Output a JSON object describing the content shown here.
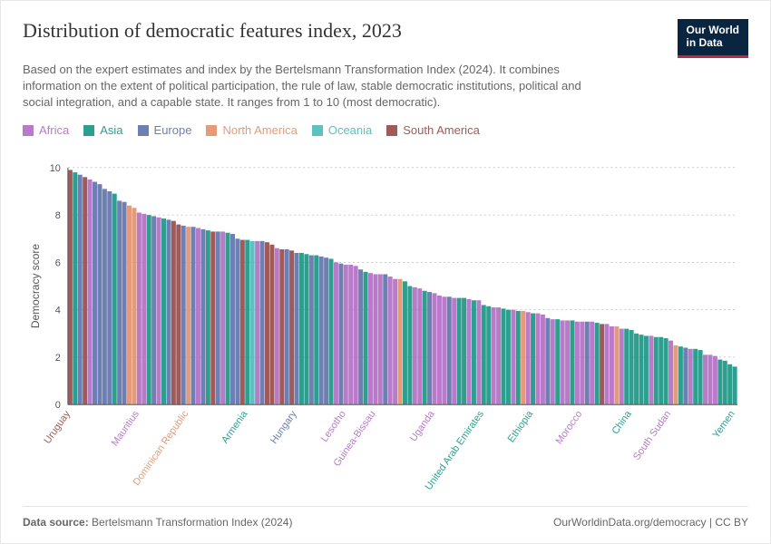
{
  "header": {
    "title": "Distribution of democratic features index, 2023",
    "subtitle": "Based on the expert estimates and index by the Bertelsmann Transformation Index (2024). It combines information on the extent of political participation, the rule of law, stable democratic institutions, political and social integration, and a capable state. It ranges from 1 to 10 (most democratic).",
    "logo_line1": "Our World",
    "logo_line2": "in Data"
  },
  "legend": {
    "items": [
      {
        "label": "Africa",
        "color": "#b97bc9"
      },
      {
        "label": "Asia",
        "color": "#2e9e8f"
      },
      {
        "label": "Europe",
        "color": "#6d7fb3"
      },
      {
        "label": "North America",
        "color": "#e59b7a"
      },
      {
        "label": "Oceania",
        "color": "#5ec1c1"
      },
      {
        "label": "South America",
        "color": "#a15a5a"
      }
    ]
  },
  "chart": {
    "type": "bar",
    "y_axis_title": "Democracy score",
    "ylim": [
      0,
      10
    ],
    "yticks": [
      0,
      2,
      4,
      6,
      8,
      10
    ],
    "grid_color": "#bbbbbb",
    "axis_color": "#555555",
    "background": "#ffffff",
    "region_colors": {
      "Africa": "#b97bc9",
      "Asia": "#2e9e8f",
      "Europe": "#6d7fb3",
      "North America": "#e59b7a",
      "Oceania": "#5ec1c1",
      "South America": "#a15a5a"
    },
    "label_fontsize": 11,
    "xlabels_shown": {
      "0": "Uruguay",
      "14": "Mauritius",
      "24": "Dominican Republic",
      "36": "Armenia",
      "46": "Hungary",
      "56": "Lesotho",
      "62": "Guinea-Bissau",
      "74": "Uganda",
      "84": "United Arab Emirates",
      "94": "Ethiopia",
      "104": "Morocco",
      "114": "China",
      "122": "South Sudan",
      "135": "Yemen"
    },
    "bars": [
      {
        "v": 9.9,
        "r": "South America"
      },
      {
        "v": 9.8,
        "r": "Asia"
      },
      {
        "v": 9.7,
        "r": "Europe"
      },
      {
        "v": 9.6,
        "r": "South America"
      },
      {
        "v": 9.5,
        "r": "Africa"
      },
      {
        "v": 9.4,
        "r": "Europe"
      },
      {
        "v": 9.3,
        "r": "Europe"
      },
      {
        "v": 9.1,
        "r": "Europe"
      },
      {
        "v": 9.0,
        "r": "Europe"
      },
      {
        "v": 8.9,
        "r": "Asia"
      },
      {
        "v": 8.6,
        "r": "Europe"
      },
      {
        "v": 8.55,
        "r": "Europe"
      },
      {
        "v": 8.4,
        "r": "North America"
      },
      {
        "v": 8.3,
        "r": "North America"
      },
      {
        "v": 8.1,
        "r": "Africa"
      },
      {
        "v": 8.05,
        "r": "Africa"
      },
      {
        "v": 8.0,
        "r": "Asia"
      },
      {
        "v": 7.95,
        "r": "Europe"
      },
      {
        "v": 7.9,
        "r": "Africa"
      },
      {
        "v": 7.85,
        "r": "Asia"
      },
      {
        "v": 7.8,
        "r": "Europe"
      },
      {
        "v": 7.75,
        "r": "South America"
      },
      {
        "v": 7.6,
        "r": "South America"
      },
      {
        "v": 7.55,
        "r": "Europe"
      },
      {
        "v": 7.5,
        "r": "North America"
      },
      {
        "v": 7.5,
        "r": "Europe"
      },
      {
        "v": 7.45,
        "r": "Africa"
      },
      {
        "v": 7.4,
        "r": "Europe"
      },
      {
        "v": 7.35,
        "r": "Asia"
      },
      {
        "v": 7.3,
        "r": "South America"
      },
      {
        "v": 7.3,
        "r": "Europe"
      },
      {
        "v": 7.3,
        "r": "Africa"
      },
      {
        "v": 7.25,
        "r": "Asia"
      },
      {
        "v": 7.2,
        "r": "Europe"
      },
      {
        "v": 7.0,
        "r": "Europe"
      },
      {
        "v": 6.95,
        "r": "South America"
      },
      {
        "v": 6.95,
        "r": "Asia"
      },
      {
        "v": 6.9,
        "r": "Oceania"
      },
      {
        "v": 6.9,
        "r": "Africa"
      },
      {
        "v": 6.9,
        "r": "Europe"
      },
      {
        "v": 6.85,
        "r": "South America"
      },
      {
        "v": 6.75,
        "r": "South America"
      },
      {
        "v": 6.6,
        "r": "Africa"
      },
      {
        "v": 6.55,
        "r": "South America"
      },
      {
        "v": 6.55,
        "r": "Europe"
      },
      {
        "v": 6.5,
        "r": "South America"
      },
      {
        "v": 6.4,
        "r": "Europe"
      },
      {
        "v": 6.4,
        "r": "Asia"
      },
      {
        "v": 6.35,
        "r": "Asia"
      },
      {
        "v": 6.3,
        "r": "Europe"
      },
      {
        "v": 6.3,
        "r": "Asia"
      },
      {
        "v": 6.25,
        "r": "Europe"
      },
      {
        "v": 6.2,
        "r": "Europe"
      },
      {
        "v": 6.15,
        "r": "Asia"
      },
      {
        "v": 6.0,
        "r": "Africa"
      },
      {
        "v": 5.95,
        "r": "Europe"
      },
      {
        "v": 5.9,
        "r": "Africa"
      },
      {
        "v": 5.9,
        "r": "Africa"
      },
      {
        "v": 5.85,
        "r": "Africa"
      },
      {
        "v": 5.7,
        "r": "Europe"
      },
      {
        "v": 5.6,
        "r": "Asia"
      },
      {
        "v": 5.55,
        "r": "Africa"
      },
      {
        "v": 5.5,
        "r": "Africa"
      },
      {
        "v": 5.5,
        "r": "Africa"
      },
      {
        "v": 5.5,
        "r": "Europe"
      },
      {
        "v": 5.4,
        "r": "Africa"
      },
      {
        "v": 5.3,
        "r": "Africa"
      },
      {
        "v": 5.3,
        "r": "North America"
      },
      {
        "v": 5.2,
        "r": "Asia"
      },
      {
        "v": 5.0,
        "r": "Asia"
      },
      {
        "v": 4.95,
        "r": "Africa"
      },
      {
        "v": 4.9,
        "r": "Africa"
      },
      {
        "v": 4.8,
        "r": "Asia"
      },
      {
        "v": 4.75,
        "r": "Europe"
      },
      {
        "v": 4.7,
        "r": "Africa"
      },
      {
        "v": 4.6,
        "r": "Africa"
      },
      {
        "v": 4.55,
        "r": "Africa"
      },
      {
        "v": 4.55,
        "r": "Europe"
      },
      {
        "v": 4.5,
        "r": "Africa"
      },
      {
        "v": 4.5,
        "r": "Asia"
      },
      {
        "v": 4.5,
        "r": "Asia"
      },
      {
        "v": 4.45,
        "r": "Africa"
      },
      {
        "v": 4.4,
        "r": "Asia"
      },
      {
        "v": 4.4,
        "r": "Africa"
      },
      {
        "v": 4.2,
        "r": "Asia"
      },
      {
        "v": 4.15,
        "r": "Asia"
      },
      {
        "v": 4.1,
        "r": "Africa"
      },
      {
        "v": 4.1,
        "r": "Africa"
      },
      {
        "v": 4.05,
        "r": "Asia"
      },
      {
        "v": 4.0,
        "r": "Asia"
      },
      {
        "v": 4.0,
        "r": "Africa"
      },
      {
        "v": 3.95,
        "r": "Asia"
      },
      {
        "v": 3.95,
        "r": "North America"
      },
      {
        "v": 3.9,
        "r": "Africa"
      },
      {
        "v": 3.85,
        "r": "Asia"
      },
      {
        "v": 3.85,
        "r": "Africa"
      },
      {
        "v": 3.8,
        "r": "Africa"
      },
      {
        "v": 3.65,
        "r": "Europe"
      },
      {
        "v": 3.6,
        "r": "Africa"
      },
      {
        "v": 3.6,
        "r": "Asia"
      },
      {
        "v": 3.55,
        "r": "Africa"
      },
      {
        "v": 3.55,
        "r": "Africa"
      },
      {
        "v": 3.55,
        "r": "Asia"
      },
      {
        "v": 3.5,
        "r": "Africa"
      },
      {
        "v": 3.5,
        "r": "Africa"
      },
      {
        "v": 3.5,
        "r": "Europe"
      },
      {
        "v": 3.5,
        "r": "Africa"
      },
      {
        "v": 3.45,
        "r": "Asia"
      },
      {
        "v": 3.4,
        "r": "South America"
      },
      {
        "v": 3.4,
        "r": "Africa"
      },
      {
        "v": 3.3,
        "r": "Africa"
      },
      {
        "v": 3.3,
        "r": "North America"
      },
      {
        "v": 3.2,
        "r": "Africa"
      },
      {
        "v": 3.2,
        "r": "Asia"
      },
      {
        "v": 3.15,
        "r": "Asia"
      },
      {
        "v": 3.0,
        "r": "Asia"
      },
      {
        "v": 2.95,
        "r": "Asia"
      },
      {
        "v": 2.9,
        "r": "Asia"
      },
      {
        "v": 2.9,
        "r": "Africa"
      },
      {
        "v": 2.85,
        "r": "Asia"
      },
      {
        "v": 2.85,
        "r": "Asia"
      },
      {
        "v": 2.8,
        "r": "Asia"
      },
      {
        "v": 2.7,
        "r": "Africa"
      },
      {
        "v": 2.5,
        "r": "North America"
      },
      {
        "v": 2.45,
        "r": "Asia"
      },
      {
        "v": 2.4,
        "r": "Europe"
      },
      {
        "v": 2.35,
        "r": "Africa"
      },
      {
        "v": 2.35,
        "r": "Asia"
      },
      {
        "v": 2.3,
        "r": "Asia"
      },
      {
        "v": 2.1,
        "r": "Africa"
      },
      {
        "v": 2.1,
        "r": "Africa"
      },
      {
        "v": 2.05,
        "r": "Africa"
      },
      {
        "v": 1.9,
        "r": "Asia"
      },
      {
        "v": 1.85,
        "r": "Asia"
      },
      {
        "v": 1.7,
        "r": "Asia"
      },
      {
        "v": 1.6,
        "r": "Asia"
      }
    ]
  },
  "footer": {
    "source_prefix": "Data source: ",
    "source": "Bertelsmann Transformation Index (2024)",
    "attribution": "OurWorldinData.org/democracy | CC BY"
  }
}
